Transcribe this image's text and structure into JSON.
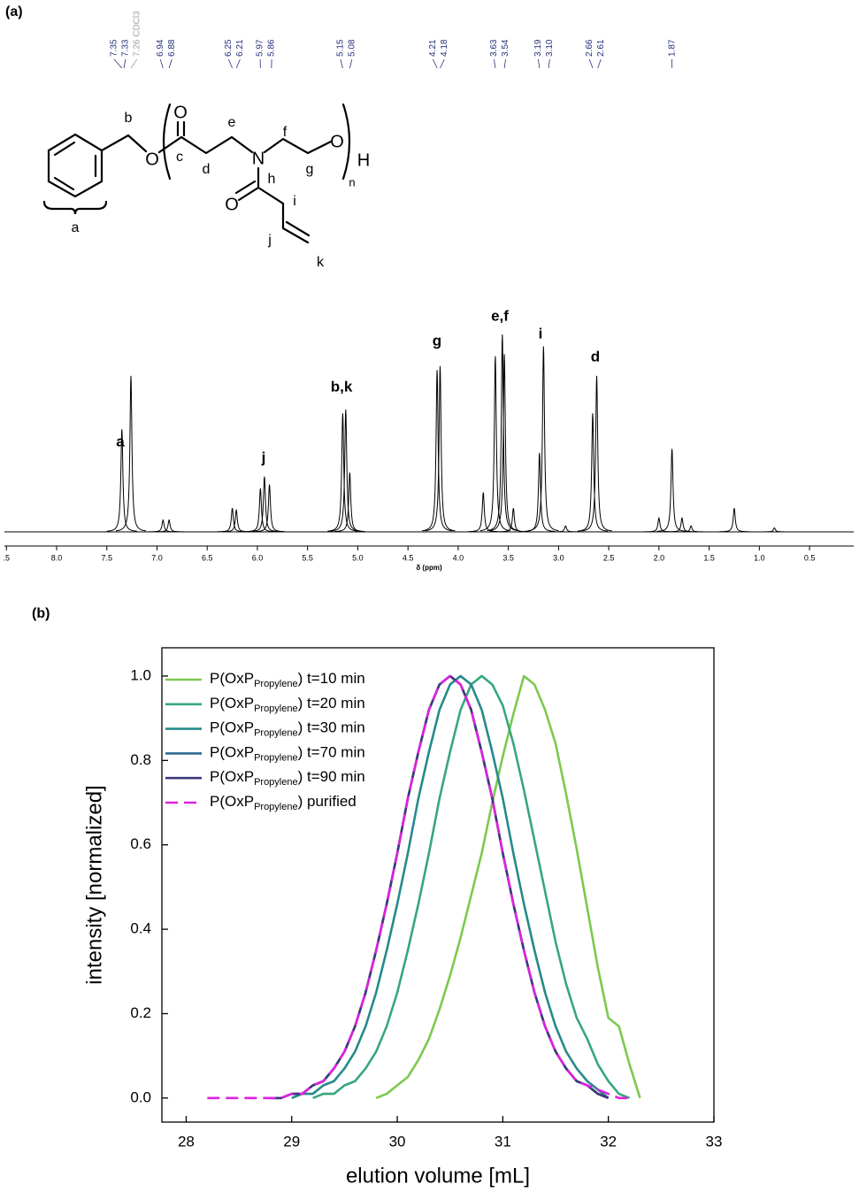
{
  "chart_data": [
    {
      "type": "nmr",
      "panel_label": "(a)",
      "xlabel": "δ (ppm)",
      "color": "#000000",
      "xlim": [
        8.52,
        0.06
      ],
      "ylim": [
        0,
        1.0
      ],
      "xticks": [
        {
          "value": 8.5,
          "label": ".5"
        },
        {
          "value": 8,
          "label": "8.0"
        },
        7.5,
        {
          "value": 7,
          "label": "7.0"
        },
        6.5,
        {
          "value": 6,
          "label": "6.0"
        },
        5.5,
        {
          "value": 5,
          "label": "5.0"
        },
        4.5,
        {
          "value": 4,
          "label": "4.0"
        },
        3.5,
        {
          "value": 3,
          "label": "3.0"
        },
        2.5,
        {
          "value": 2,
          "label": "2.0"
        },
        1.5,
        {
          "value": 1,
          "label": "1.0"
        },
        0.5
      ],
      "peaks": {
        "x": [
          7.35,
          7.26,
          6.94,
          6.88,
          6.25,
          6.21,
          5.97,
          5.93,
          5.88,
          5.15,
          5.12,
          5.08,
          4.21,
          4.18,
          3.75,
          3.63,
          3.56,
          3.54,
          3.45,
          3.19,
          3.15,
          2.93,
          2.66,
          2.62,
          2.0,
          1.87,
          1.77,
          1.68,
          1.25,
          0.85
        ],
        "values": [
          0.52,
          0.79,
          0.06,
          0.06,
          0.12,
          0.11,
          0.22,
          0.28,
          0.24,
          0.6,
          0.62,
          0.3,
          0.82,
          0.84,
          0.2,
          0.89,
          1.0,
          0.9,
          0.12,
          0.4,
          0.94,
          0.03,
          0.6,
          0.79,
          0.07,
          0.42,
          0.07,
          0.03,
          0.12,
          0.02
        ]
      },
      "pick_color": "#25307a",
      "peak_picks": [
        {
          "value": 7.35,
          "label": "7.35"
        },
        {
          "value": 7.33,
          "label": "7.33"
        },
        {
          "value": 6.94,
          "label": "6.94"
        },
        {
          "value": 6.88,
          "label": "6.88"
        },
        {
          "value": 6.25,
          "label": "6.25"
        },
        {
          "value": 6.21,
          "label": "6.21"
        },
        {
          "value": 5.97,
          "label": "5.97"
        },
        {
          "value": 5.86,
          "label": "5.86"
        },
        {
          "value": 5.15,
          "label": "5.15"
        },
        {
          "value": 5.08,
          "label": "5.08"
        },
        {
          "value": 4.21,
          "label": "4.21"
        },
        {
          "value": 4.18,
          "label": "4.18"
        },
        {
          "value": 3.63,
          "label": "3.63"
        },
        {
          "value": 3.54,
          "label": "3.54"
        },
        {
          "value": 3.19,
          "label": "3.19"
        },
        {
          "value": 3.1,
          "label": "3.10"
        },
        {
          "value": 2.66,
          "label": "2.66"
        },
        {
          "value": 2.61,
          "label": "2.61"
        },
        {
          "value": 1.87,
          "label": "1.87"
        }
      ],
      "solvent_pick": {
        "value": 7.26,
        "label": "7.26 CDCl3",
        "color": "#a0a0a0"
      },
      "peak_labels": [
        "a",
        "j",
        "b,k",
        "g",
        "e,f",
        "i",
        "d"
      ],
      "structure_labels": [
        "b",
        "O",
        "c",
        "O",
        "d",
        "e",
        "N",
        "f",
        "g",
        "O",
        "n",
        "H",
        "h",
        "O",
        "i",
        "j",
        "k",
        "a"
      ]
    },
    {
      "type": "line",
      "panel_label": "(b)",
      "xlabel": "elution volume [mL]",
      "ylabel": "intensity [normalized]",
      "xlim": [
        27.77,
        33
      ],
      "ylim": [
        -0.057,
        1.067
      ],
      "xticks": [
        28,
        29,
        30,
        31,
        32,
        33
      ],
      "yticks": [
        {
          "value": 0,
          "label": "0.0"
        },
        0.2,
        0.4,
        0.6,
        0.8,
        {
          "value": 1,
          "label": "1.0"
        }
      ],
      "series": [
        {
          "name": [
            "P(OxP",
            "Propylene",
            ") t=10 min"
          ],
          "color": "#7cc94e",
          "dash": false,
          "x": [
            29.8,
            29.9,
            30.0,
            30.1,
            30.2,
            30.3,
            30.4,
            30.5,
            30.6,
            30.7,
            30.8,
            30.9,
            31.0,
            31.1,
            31.2,
            31.3,
            31.4,
            31.5,
            31.6,
            31.7,
            31.8,
            31.9,
            32.0,
            32.1,
            32.2,
            32.3
          ],
          "values": [
            0.0,
            0.01,
            0.03,
            0.05,
            0.09,
            0.14,
            0.21,
            0.29,
            0.38,
            0.48,
            0.58,
            0.7,
            0.81,
            0.91,
            1.0,
            0.98,
            0.92,
            0.84,
            0.72,
            0.59,
            0.45,
            0.31,
            0.19,
            0.17,
            0.08,
            0.0
          ]
        },
        {
          "name": [
            "P(OxP",
            "Propylene",
            ") t=20 min"
          ],
          "color": "#36a77c",
          "dash": false,
          "x": [
            29.2,
            29.3,
            29.4,
            29.5,
            29.6,
            29.7,
            29.8,
            29.9,
            30.0,
            30.1,
            30.2,
            30.3,
            30.4,
            30.5,
            30.6,
            30.7,
            30.8,
            30.9,
            31.0,
            31.1,
            31.2,
            31.3,
            31.4,
            31.5,
            31.6,
            31.7,
            31.8,
            31.9,
            32.0,
            32.1,
            32.2
          ],
          "values": [
            0.0,
            0.01,
            0.01,
            0.03,
            0.04,
            0.07,
            0.11,
            0.17,
            0.25,
            0.35,
            0.46,
            0.58,
            0.71,
            0.82,
            0.92,
            0.98,
            1.0,
            0.98,
            0.93,
            0.84,
            0.73,
            0.61,
            0.49,
            0.37,
            0.27,
            0.19,
            0.14,
            0.08,
            0.04,
            0.01,
            0.0
          ]
        },
        {
          "name": [
            "P(OxP",
            "Propylene",
            ") t=30 min"
          ],
          "color": "#268a8a",
          "dash": false,
          "x": [
            29.0,
            29.1,
            29.2,
            29.3,
            29.4,
            29.5,
            29.6,
            29.7,
            29.8,
            29.9,
            30.0,
            30.1,
            30.2,
            30.3,
            30.4,
            30.5,
            30.6,
            30.7,
            30.8,
            30.9,
            31.0,
            31.1,
            31.2,
            31.3,
            31.4,
            31.5,
            31.6,
            31.7,
            31.8,
            31.9,
            32.0
          ],
          "values": [
            0.0,
            0.01,
            0.01,
            0.03,
            0.04,
            0.07,
            0.11,
            0.17,
            0.25,
            0.35,
            0.46,
            0.58,
            0.71,
            0.82,
            0.92,
            0.98,
            1.0,
            0.98,
            0.92,
            0.82,
            0.71,
            0.58,
            0.46,
            0.35,
            0.25,
            0.17,
            0.11,
            0.07,
            0.04,
            0.02,
            0.0
          ]
        },
        {
          "name": [
            "P(OxP",
            "Propylene",
            ") t=70 min"
          ],
          "color": "#2f6890",
          "dash": false,
          "x": [
            28.8,
            28.9,
            29.0,
            29.1,
            29.2,
            29.3,
            29.4,
            29.5,
            29.6,
            29.7,
            29.8,
            29.9,
            30.0,
            30.1,
            30.2,
            30.3,
            30.4,
            30.5,
            30.6,
            30.7,
            30.8,
            30.9,
            31.0,
            31.1,
            31.2,
            31.3,
            31.4,
            31.5,
            31.6,
            31.7,
            31.8,
            31.9,
            32.0
          ],
          "values": [
            0.0,
            0.0,
            0.01,
            0.01,
            0.03,
            0.04,
            0.07,
            0.11,
            0.17,
            0.25,
            0.35,
            0.46,
            0.58,
            0.71,
            0.82,
            0.92,
            0.98,
            1.0,
            0.98,
            0.92,
            0.82,
            0.71,
            0.58,
            0.46,
            0.35,
            0.25,
            0.17,
            0.11,
            0.07,
            0.04,
            0.03,
            0.01,
            0.0
          ]
        },
        {
          "name": [
            "P(OxP",
            "Propylene",
            ") t=90 min"
          ],
          "color": "#3b3a78",
          "dash": false,
          "x": [
            28.8,
            28.9,
            29.0,
            29.1,
            29.2,
            29.3,
            29.4,
            29.5,
            29.6,
            29.7,
            29.8,
            29.9,
            30.0,
            30.1,
            30.2,
            30.3,
            30.4,
            30.5,
            30.6,
            30.7,
            30.8,
            30.9,
            31.0,
            31.1,
            31.2,
            31.3,
            31.4,
            31.5,
            31.6,
            31.7,
            31.8,
            31.9,
            32.0
          ],
          "values": [
            0.0,
            0.0,
            0.01,
            0.01,
            0.03,
            0.04,
            0.07,
            0.11,
            0.17,
            0.25,
            0.35,
            0.46,
            0.58,
            0.71,
            0.82,
            0.92,
            0.98,
            1.0,
            0.98,
            0.92,
            0.82,
            0.71,
            0.58,
            0.46,
            0.35,
            0.25,
            0.17,
            0.11,
            0.07,
            0.04,
            0.03,
            0.01,
            0.0
          ]
        },
        {
          "name": [
            "P(OxP",
            "Propylene",
            ") purified"
          ],
          "color": "#e020e0",
          "dash": true,
          "x": [
            28.2,
            28.3,
            28.4,
            28.5,
            28.6,
            28.7,
            28.8,
            28.9,
            29.0,
            29.1,
            29.2,
            29.3,
            29.4,
            29.5,
            29.6,
            29.7,
            29.8,
            29.9,
            30.0,
            30.1,
            30.2,
            30.3,
            30.4,
            30.5,
            30.6,
            30.7,
            30.8,
            30.9,
            31.0,
            31.1,
            31.2,
            31.3,
            31.4,
            31.5,
            31.6,
            31.7,
            31.8,
            31.9,
            32.0,
            32.1,
            32.2
          ],
          "values": [
            0.0,
            0.0,
            0.0,
            0.0,
            0.0,
            0.0,
            0.0,
            0.0,
            0.01,
            0.01,
            0.03,
            0.04,
            0.07,
            0.11,
            0.17,
            0.25,
            0.35,
            0.46,
            0.58,
            0.71,
            0.82,
            0.92,
            0.98,
            1.0,
            0.98,
            0.92,
            0.82,
            0.71,
            0.58,
            0.46,
            0.35,
            0.25,
            0.17,
            0.11,
            0.07,
            0.04,
            0.03,
            0.02,
            0.01,
            0.0,
            0.0
          ]
        }
      ]
    }
  ]
}
